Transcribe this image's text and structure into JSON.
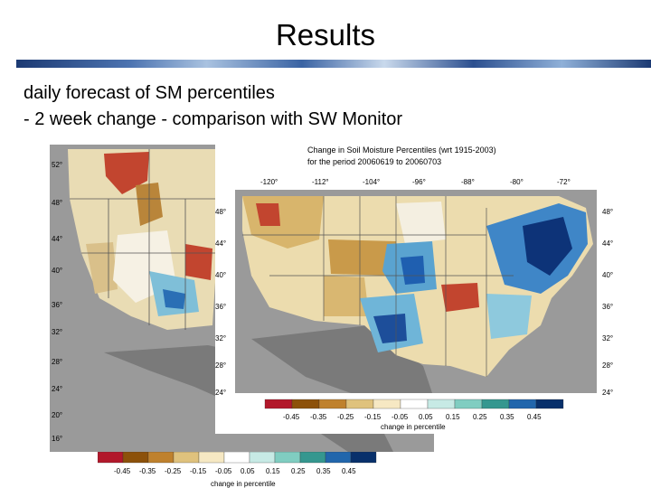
{
  "slide": {
    "title": "Results",
    "subtitle_line1": "daily forecast of SM percentiles",
    "subtitle_line2": "- 2 week change - comparison with SW Monitor"
  },
  "back_map": {
    "lat_labels": [
      "52°",
      "48°",
      "44°",
      "40°",
      "36°",
      "32°",
      "28°",
      "24°",
      "20°",
      "16°"
    ],
    "colorbar_ticks": [
      "-0.45",
      "-0.35",
      "-0.25",
      "-0.15",
      "-0.05",
      "0.05",
      "0.15",
      "0.25",
      "0.35",
      "0.45"
    ],
    "colorbar_label": "change in percentile"
  },
  "front_map": {
    "title_line1": "Change in Soil Moisture Percentiles (wrt 1915-2003)",
    "title_line2": "for the period 20060619 to 20060703",
    "lon_labels": [
      "-120°",
      "-112°",
      "-104°",
      "-96°",
      "-88°",
      "-80°",
      "-72°"
    ],
    "lat_labels": [
      "48°",
      "44°",
      "40°",
      "36°",
      "32°",
      "28°",
      "24°"
    ],
    "colorbar_ticks": [
      "-0.45",
      "-0.35",
      "-0.25",
      "-0.15",
      "-0.05",
      "0.05",
      "0.15",
      "0.25",
      "0.35",
      "0.45"
    ],
    "colorbar_label": "change in percentile"
  },
  "colors": {
    "scale": [
      "#b2182b",
      "#8c510a",
      "#bf812d",
      "#dfc27d",
      "#f6e8c3",
      "#ffffff",
      "#c7eae5",
      "#80cdc1",
      "#35978f",
      "#2166ac",
      "#08306b"
    ],
    "ocean": "#8c8c8c",
    "land_neutral": "#ffffff"
  }
}
